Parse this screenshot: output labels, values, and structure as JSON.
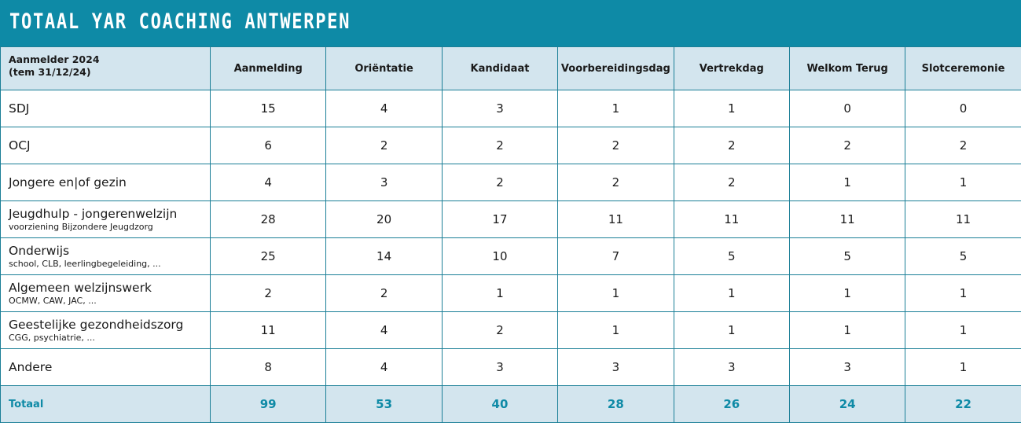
{
  "title": "TOTAAL YAR COACHING ANTWERPEN",
  "header": {
    "first_line1": "Aanmelder 2024",
    "first_line2": "(tem 31/12/24)",
    "columns": [
      "Aanmelding",
      "Oriëntatie",
      "Kandidaat",
      "Voorbereidingsdag",
      "Vertrekdag",
      "Welkom Terug",
      "Slotceremonie"
    ]
  },
  "rows": [
    {
      "name": "SDJ",
      "sub": "",
      "values": [
        "15",
        "4",
        "3",
        "1",
        "1",
        "0",
        "0"
      ]
    },
    {
      "name": "OCJ",
      "sub": "",
      "values": [
        "6",
        "2",
        "2",
        "2",
        "2",
        "2",
        "2"
      ]
    },
    {
      "name": "Jongere en|of gezin",
      "sub": "",
      "values": [
        "4",
        "3",
        "2",
        "2",
        "2",
        "1",
        "1"
      ]
    },
    {
      "name": "Jeugdhulp - jongerenwelzijn",
      "sub": "voorziening Bijzondere Jeugdzorg",
      "values": [
        "28",
        "20",
        "17",
        "11",
        "11",
        "11",
        "11"
      ]
    },
    {
      "name": "Onderwijs",
      "sub": "school, CLB, leerlingbegeleiding, ...",
      "values": [
        "25",
        "14",
        "10",
        "7",
        "5",
        "5",
        "5"
      ]
    },
    {
      "name": "Algemeen welzijnswerk",
      "sub": "OCMW, CAW, JAC, ...",
      "values": [
        "2",
        "2",
        "1",
        "1",
        "1",
        "1",
        "1"
      ]
    },
    {
      "name": "Geestelijke gezondheidszorg",
      "sub": "CGG, psychiatrie, ...",
      "values": [
        "11",
        "4",
        "2",
        "1",
        "1",
        "1",
        "1"
      ]
    },
    {
      "name": "Andere",
      "sub": "",
      "values": [
        "8",
        "4",
        "3",
        "3",
        "3",
        "3",
        "1"
      ]
    }
  ],
  "total": {
    "label": "Totaal",
    "values": [
      "99",
      "53",
      "40",
      "28",
      "26",
      "24",
      "22"
    ]
  },
  "colors": {
    "accent": "#0e8aa6",
    "header_bg": "#d3e5ee",
    "border": "#1b7f97"
  }
}
